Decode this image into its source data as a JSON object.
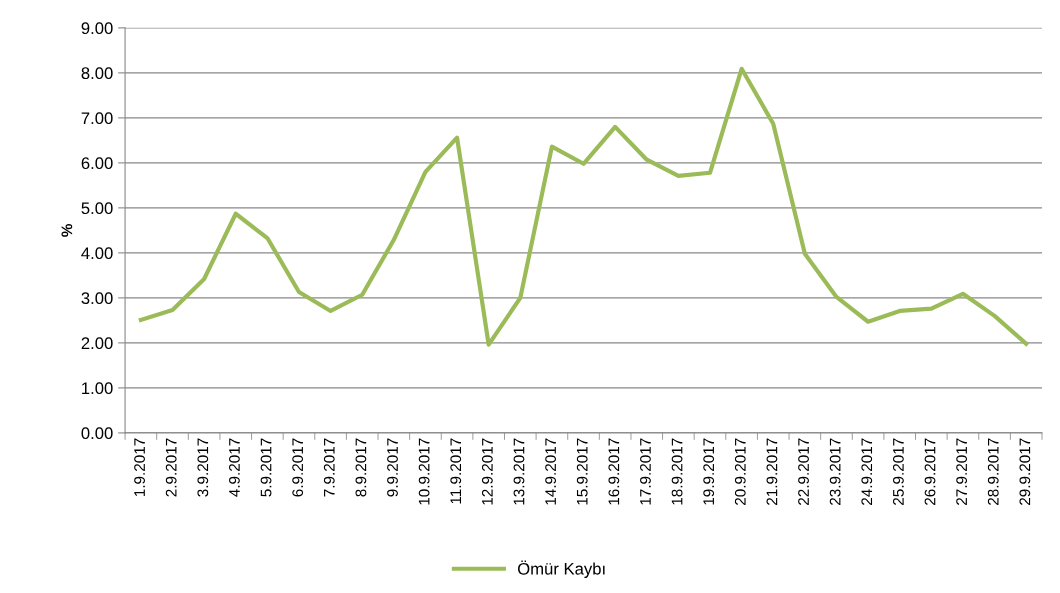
{
  "chart_data": {
    "type": "line",
    "ylabel": "%",
    "categories": [
      "1.9.2017",
      "2.9.2017",
      "3.9.2017",
      "4.9.2017",
      "5.9.2017",
      "6.9.2017",
      "7.9.2017",
      "8.9.2017",
      "9.9.2017",
      "10.9.2017",
      "11.9.2017",
      "12.9.2017",
      "13.9.2017",
      "14.9.2017",
      "15.9.2017",
      "16.9.2017",
      "17.9.2017",
      "18.9.2017",
      "19.9.2017",
      "20.9.2017",
      "21.9.2017",
      "22.9.2017",
      "23.9.2017",
      "24.9.2017",
      "25.9.2017",
      "26.9.2017",
      "27.9.2017",
      "28.9.2017",
      "29.9.2017"
    ],
    "series": [
      {
        "name": "Ömür Kaybı",
        "color": "#9bbb59",
        "values": [
          2.51,
          2.73,
          3.42,
          4.87,
          4.33,
          3.13,
          2.71,
          3.07,
          4.29,
          5.8,
          6.56,
          1.96,
          3.0,
          6.36,
          5.98,
          6.8,
          6.07,
          5.71,
          5.78,
          8.09,
          6.87,
          3.98,
          3.02,
          2.47,
          2.71,
          2.76,
          3.09,
          2.6,
          1.98
        ]
      }
    ],
    "ylim": [
      0,
      9
    ],
    "yticks": [
      {
        "value": 0,
        "label": "0.00"
      },
      {
        "value": 1,
        "label": "1.00"
      },
      {
        "value": 2,
        "label": "2.00"
      },
      {
        "value": 3,
        "label": "3.00"
      },
      {
        "value": 4,
        "label": "4.00"
      },
      {
        "value": 5,
        "label": "5.00"
      },
      {
        "value": 6,
        "label": "6.00"
      },
      {
        "value": 7,
        "label": "7.00"
      },
      {
        "value": 8,
        "label": "8.00"
      },
      {
        "value": 9,
        "label": "9.00"
      }
    ],
    "grid": "y",
    "legend": "bottom",
    "marker": "none",
    "line_style": "solid"
  }
}
